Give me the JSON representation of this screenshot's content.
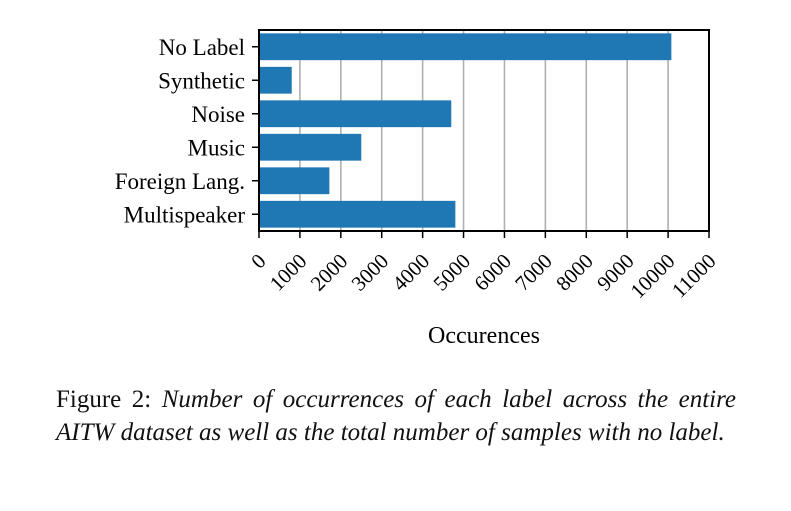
{
  "chart_data": {
    "type": "bar",
    "orientation": "horizontal",
    "categories": [
      "No Label",
      "Synthetic",
      "Noise",
      "Music",
      "Foreign Lang.",
      "Multispeaker"
    ],
    "values": [
      10080,
      800,
      4700,
      2500,
      1720,
      4800
    ],
    "xlabel": "Occurences",
    "ylabel": "",
    "xlim": [
      0,
      11000
    ],
    "xticks": [
      "0",
      "1000",
      "2000",
      "3000",
      "4000",
      "5000",
      "6000",
      "7000",
      "8000",
      "9000",
      "10000",
      "11000"
    ],
    "grid": "vertical",
    "bar_color": "#1f77b4",
    "grid_color": "#b0b0b0"
  },
  "caption": {
    "label": "Figure 2:",
    "text": "Number of occurrences of each label across the entire AITW dataset as well as the total number of samples with no label."
  }
}
